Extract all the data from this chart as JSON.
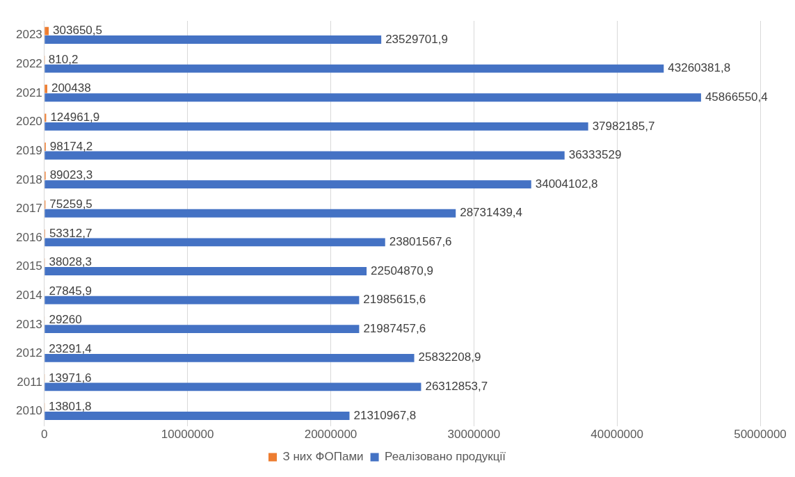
{
  "chart_data": {
    "type": "bar",
    "orientation": "horizontal",
    "categories": [
      "2023",
      "2022",
      "2021",
      "2020",
      "2019",
      "2018",
      "2017",
      "2016",
      "2015",
      "2014",
      "2013",
      "2012",
      "2011",
      "2010"
    ],
    "series": [
      {
        "name": "З них ФОПами",
        "color": "#ed7d31",
        "values": [
          303650.5,
          810.2,
          200438,
          124961.9,
          98174.2,
          89023.3,
          75259.5,
          53312.7,
          38028.3,
          27845.9,
          29260,
          23291.4,
          13971.6,
          13801.8
        ],
        "value_labels": [
          "303650,5",
          "810,2",
          "200438",
          "124961,9",
          "98174,2",
          "89023,3",
          "75259,5",
          "53312,7",
          "38028,3",
          "27845,9",
          "29260",
          "23291,4",
          "13971,6",
          "13801,8"
        ]
      },
      {
        "name": "Реалізовано продукції",
        "color": "#4472c4",
        "values": [
          23529701.9,
          43260381.8,
          45866550.4,
          37982185.7,
          36333529,
          34004102.8,
          28731439.4,
          23801567.6,
          22504870.9,
          21985615.6,
          21987457.6,
          25832208.9,
          26312853.7,
          21310967.8
        ],
        "value_labels": [
          "23529701,9",
          "43260381,8",
          "45866550,4",
          "37982185,7",
          "36333529",
          "34004102,8",
          "28731439,4",
          "23801567,6",
          "22504870,9",
          "21985615,6",
          "21987457,6",
          "25832208,9",
          "26312853,7",
          "21310967,8"
        ]
      }
    ],
    "xlim": [
      0,
      50000000
    ],
    "xticks": [
      0,
      10000000,
      20000000,
      30000000,
      40000000,
      50000000
    ],
    "grid": "x",
    "legend": "bottom"
  }
}
